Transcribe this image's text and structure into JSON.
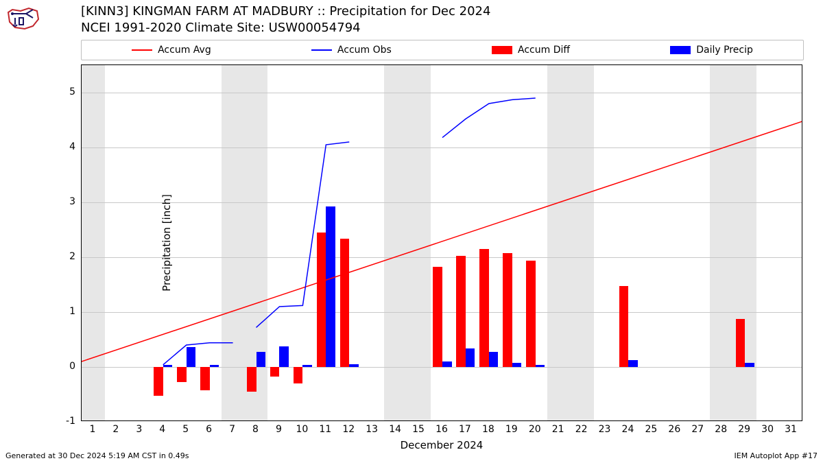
{
  "title": "[KINN3] KINGMAN FARM AT MADBURY :: Precipitation for Dec 2024",
  "subtitle": "NCEI 1991-2020 Climate Site: USW00054794",
  "footer_left": "Generated at 30 Dec 2024 5:19 AM CST in 0.49s",
  "footer_right": "IEM Autoplot App #17",
  "ylabel": "Precipitation [inch]",
  "xlabel": "December 2024",
  "legend": {
    "items": [
      {
        "label": "Accum Avg",
        "type": "line",
        "color": "#ff0000"
      },
      {
        "label": "Accum Obs",
        "type": "line",
        "color": "#0000ff"
      },
      {
        "label": "Accum Diff",
        "type": "patch",
        "color": "#ff0000"
      },
      {
        "label": "Daily Precip",
        "type": "patch",
        "color": "#0000ff"
      }
    ],
    "border_color": "#bfbfbf"
  },
  "chart": {
    "type": "bar-line-combo",
    "xlim": [
      0.5,
      31.5
    ],
    "ylim": [
      -1,
      5.5
    ],
    "xticks": [
      1,
      2,
      3,
      4,
      5,
      6,
      7,
      8,
      9,
      10,
      11,
      12,
      13,
      14,
      15,
      16,
      17,
      18,
      19,
      20,
      21,
      22,
      23,
      24,
      25,
      26,
      27,
      28,
      29,
      30,
      31
    ],
    "yticks": [
      -1,
      0,
      1,
      2,
      3,
      4,
      5
    ],
    "grid_color": "#c8c8c8",
    "background_color": "#ffffff",
    "weekend_band_color": "#e7e7e7",
    "weekend_bands": [
      [
        0.5,
        1.5
      ],
      [
        6.5,
        8.5
      ],
      [
        13.5,
        15.5
      ],
      [
        20.5,
        22.5
      ],
      [
        27.5,
        29.5
      ]
    ],
    "accum_avg": {
      "color": "#ff0000",
      "line_width": 1.5,
      "points": [
        [
          0.5,
          0.1
        ],
        [
          31.5,
          4.48
        ]
      ]
    },
    "accum_obs": {
      "color": "#0000ff",
      "line_width": 1.5,
      "segments": [
        [
          [
            4,
            0.04
          ],
          [
            5,
            0.4
          ],
          [
            6,
            0.44
          ],
          [
            7,
            0.44
          ]
        ],
        [
          [
            8,
            0.72
          ],
          [
            9,
            1.1
          ],
          [
            10,
            1.12
          ],
          [
            11,
            4.05
          ],
          [
            12,
            4.1
          ]
        ],
        [
          [
            16,
            4.18
          ],
          [
            17,
            4.52
          ],
          [
            18,
            4.8
          ],
          [
            19,
            4.87
          ],
          [
            20,
            4.9
          ]
        ]
      ]
    },
    "accum_diff": {
      "color": "#ff0000",
      "bar_width": 0.4,
      "data": {
        "4": -0.52,
        "5": -0.28,
        "6": -0.43,
        "8": -0.45,
        "9": -0.18,
        "10": -0.3,
        "11": 2.45,
        "12": 2.34,
        "16": 1.82,
        "17": 2.02,
        "18": 2.15,
        "19": 2.08,
        "20": 1.94,
        "24": 1.47,
        "29": 0.87
      }
    },
    "daily_precip": {
      "color": "#0000ff",
      "bar_width": 0.4,
      "data": {
        "4": 0.04,
        "5": 0.36,
        "6": 0.04,
        "8": 0.28,
        "9": 0.38,
        "10": 0.04,
        "11": 2.93,
        "12": 0.05,
        "16": 0.1,
        "17": 0.34,
        "18": 0.28,
        "19": 0.07,
        "20": 0.04,
        "24": 0.12,
        "29": 0.08
      }
    }
  },
  "logo_colors": {
    "outline": "#c1272d",
    "ink": "#1b1464"
  }
}
